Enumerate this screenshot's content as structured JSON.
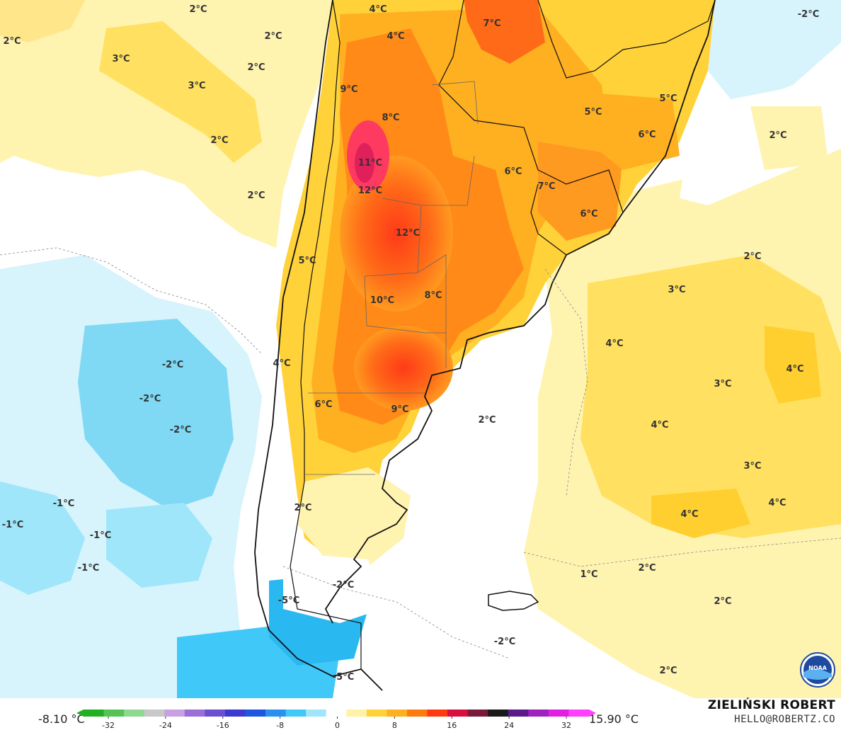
{
  "legend": {
    "min_label": "-8.10 °C",
    "max_label": "15.90 °C",
    "ticks": [
      "-32",
      "-24",
      "-16",
      "-8",
      "0",
      "8",
      "16",
      "24",
      "32"
    ],
    "colors": [
      "#22b022",
      "#55c455",
      "#8fd88f",
      "#c8c8c8",
      "#c9a0e0",
      "#9a6fd8",
      "#6a4fd0",
      "#3a3ad0",
      "#1f56e0",
      "#2a90f0",
      "#40c8f8",
      "#9fe6fb",
      "#ffffff",
      "#fff2a6",
      "#ffd23a",
      "#ffb020",
      "#ff7a10",
      "#ff3a10",
      "#d81040",
      "#7a1a3a",
      "#1a1a1a",
      "#5a1a8a",
      "#a020c0",
      "#e020e0",
      "#ff40ff"
    ]
  },
  "credit": {
    "author": "ZIELIŃSKI ROBERT",
    "email": "HELLO@ROBERTZ.CO"
  },
  "map_labels": [
    "2°C",
    "2°C",
    "4°C",
    "7°C",
    "-2°C",
    "2°C",
    "3°C",
    "3°C",
    "2°C",
    "4°C",
    "9°C",
    "8°C",
    "5°C",
    "5°C",
    "6°C",
    "2°C",
    "2°C",
    "11°C",
    "12°C",
    "6°C",
    "7°C",
    "2°C",
    "12°C",
    "6°C",
    "2°C",
    "5°C",
    "3°C",
    "10°C",
    "8°C",
    "4°C",
    "4°C",
    "-2°C",
    "4°C",
    "3°C",
    "-2°C",
    "6°C",
    "9°C",
    "2°C",
    "-2°C",
    "4°C",
    "3°C",
    "2°C",
    "-1°C",
    "4°C",
    "4°C",
    "-1°C",
    "-1°C",
    "-1°C",
    "1°C",
    "2°C",
    "-2°C",
    "2°C",
    "-5°C",
    "-2°C",
    "2°C",
    "-5°C"
  ],
  "noaa_logo_text": "NOAA"
}
